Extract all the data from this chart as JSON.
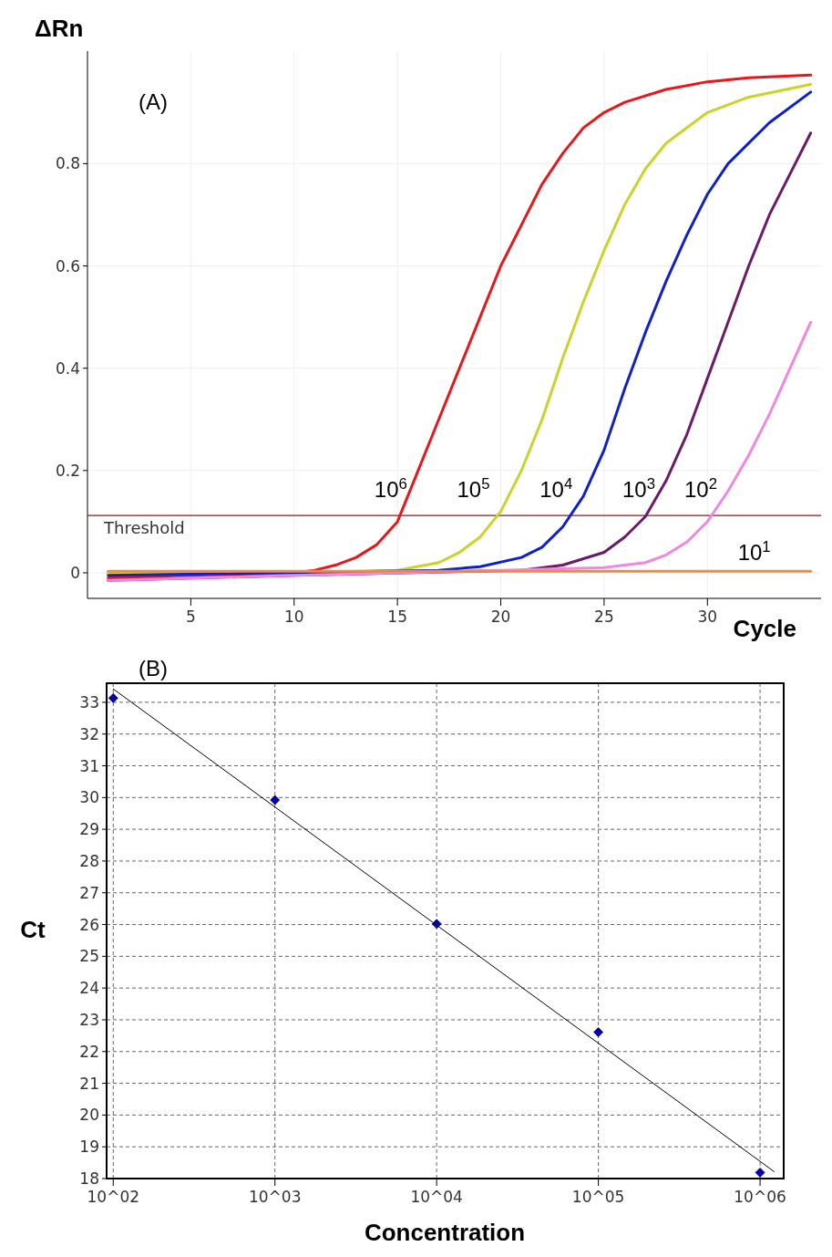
{
  "chart_data": [
    {
      "type": "line",
      "xlabel": "Cycle",
      "ylabel": "ΔRn",
      "annotations": [
        "(A)"
      ],
      "xlim": [
        0,
        35.5
      ],
      "ylim": [
        -0.05,
        1.02
      ],
      "xticks": [
        5,
        10,
        15,
        20,
        25,
        30
      ],
      "yticks": [
        0,
        0.2,
        0.4,
        0.6,
        0.8
      ],
      "grid": true,
      "line_style": "solid",
      "ref_lines": [
        {
          "axis": "y",
          "value": 0.112,
          "label": "Threshold",
          "color": "#8b1a1a"
        }
      ],
      "series": [
        {
          "name": "10$^{6}$",
          "color": "#e8171b",
          "x": [
            1,
            5,
            10,
            11,
            12,
            13,
            14,
            15,
            16,
            17,
            18,
            19,
            20,
            21,
            22,
            23,
            24,
            25,
            26,
            28,
            30,
            32,
            35
          ],
          "values": [
            -0.01,
            -0.005,
            0,
            0.005,
            0.015,
            0.03,
            0.055,
            0.1,
            0.2,
            0.3,
            0.4,
            0.5,
            0.6,
            0.68,
            0.76,
            0.82,
            0.87,
            0.9,
            0.92,
            0.945,
            0.96,
            0.968,
            0.973
          ]
        },
        {
          "name": "10$^{5}$",
          "color": "#c8d42a",
          "x": [
            1,
            10,
            15,
            17,
            18,
            19,
            20,
            21,
            22,
            23,
            24,
            25,
            26,
            27,
            28,
            30,
            32,
            35
          ],
          "values": [
            0,
            0,
            0.005,
            0.02,
            0.04,
            0.07,
            0.12,
            0.2,
            0.3,
            0.42,
            0.53,
            0.63,
            0.72,
            0.79,
            0.84,
            0.9,
            0.93,
            0.955
          ]
        },
        {
          "name": "10$^{4}$",
          "color": "#1020c8",
          "x": [
            1,
            17,
            19,
            21,
            22,
            23,
            24,
            25,
            26,
            27,
            28,
            29,
            30,
            31,
            32,
            33,
            35
          ],
          "values": [
            -0.005,
            0.005,
            0.012,
            0.03,
            0.05,
            0.09,
            0.15,
            0.24,
            0.36,
            0.47,
            0.57,
            0.66,
            0.74,
            0.8,
            0.84,
            0.88,
            0.94
          ]
        },
        {
          "name": "10$^{3}$",
          "color": "#6a1a6a",
          "x": [
            1,
            10,
            21,
            23,
            25,
            26,
            27,
            28,
            29,
            30,
            31,
            32,
            33,
            34,
            35
          ],
          "values": [
            -0.015,
            -0.005,
            0.005,
            0.015,
            0.04,
            0.07,
            0.11,
            0.18,
            0.27,
            0.38,
            0.49,
            0.6,
            0.7,
            0.78,
            0.86
          ]
        },
        {
          "name": "10$^{2}$",
          "color": "#ee88e0",
          "x": [
            1,
            10,
            20,
            25,
            27,
            28,
            29,
            30,
            31,
            32,
            33,
            34,
            35
          ],
          "values": [
            -0.015,
            -0.005,
            0.005,
            0.01,
            0.02,
            0.035,
            0.06,
            0.1,
            0.16,
            0.23,
            0.31,
            0.4,
            0.49
          ]
        },
        {
          "name": "10$^{1}$",
          "color": "#f08a40",
          "x": [
            1,
            35
          ],
          "values": [
            0.003,
            0.003
          ]
        }
      ]
    },
    {
      "type": "scatter",
      "xlabel": "Concentration",
      "ylabel": "Ct",
      "annotations": [
        "(B)"
      ],
      "log": "x",
      "xlim": [
        91,
        1400000
      ],
      "ylim": [
        18,
        33.6
      ],
      "xticks": [
        {
          "value": 100,
          "label": "10^02"
        },
        {
          "value": 1000,
          "label": "10^03"
        },
        {
          "value": 10000,
          "label": "10^04"
        },
        {
          "value": 100000,
          "label": "10^05"
        },
        {
          "value": 1000000,
          "label": "10^06"
        }
      ],
      "yticks": [
        18,
        19,
        20,
        21,
        22,
        23,
        24,
        25,
        26,
        27,
        28,
        29,
        30,
        31,
        32,
        33
      ],
      "grid": true,
      "series": [
        {
          "marker": "diamond",
          "color": "#0000c0",
          "x": [
            100,
            1000,
            10000,
            100000,
            1000000
          ],
          "values": [
            33.13,
            29.92,
            26.02,
            22.61,
            18.19
          ]
        },
        {
          "type": "line",
          "color": "#000000",
          "x": [
            100,
            1220000
          ],
          "values": [
            33.42,
            18.22
          ]
        }
      ]
    }
  ]
}
